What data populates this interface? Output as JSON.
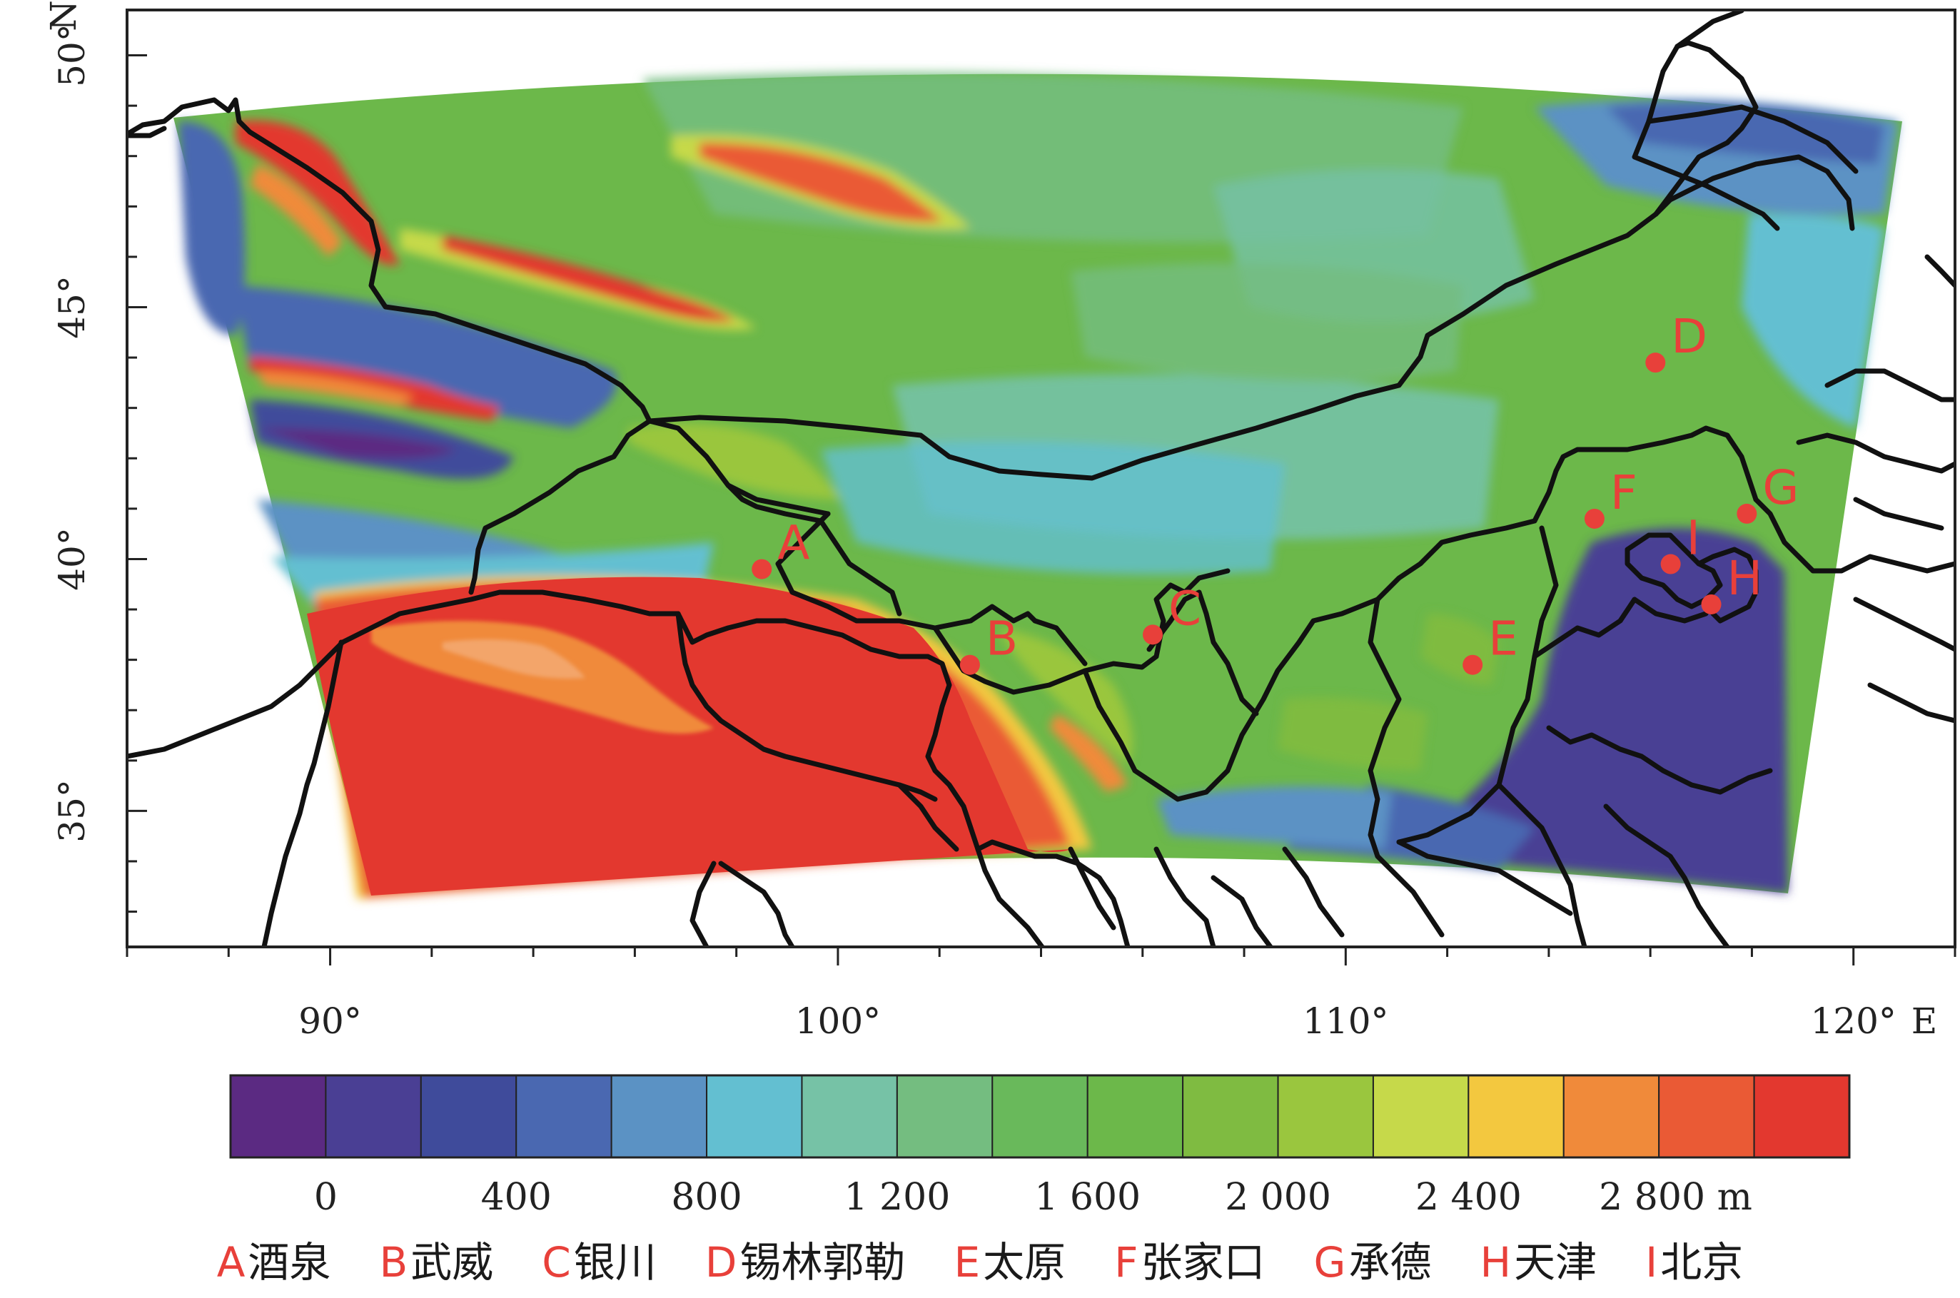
{
  "map": {
    "lat_ticks": [
      {
        "value": 35,
        "label": "35°"
      },
      {
        "value": 40,
        "label": "40°"
      },
      {
        "value": 45,
        "label": "45°"
      },
      {
        "value": 50,
        "label": "50°"
      }
    ],
    "lon_ticks": [
      {
        "value": 90,
        "label": "90°"
      },
      {
        "value": 100,
        "label": "100°"
      },
      {
        "value": 110,
        "label": "110°"
      },
      {
        "value": 120,
        "label": "120°"
      }
    ],
    "north_label": "N",
    "east_label": "E",
    "extent": {
      "lon": [
        86,
        122
      ],
      "lat": [
        32.3,
        50.9
      ]
    },
    "boundary_color": "#111111"
  },
  "colorbar": {
    "labels": [
      "0",
      "400",
      "800",
      "1 200",
      "1 600",
      "2 000",
      "2 400",
      "2 800 m"
    ],
    "colors": [
      "#5b2a82",
      "#4a3f94",
      "#3f4b9b",
      "#4a68b1",
      "#5b92c4",
      "#63bfd1",
      "#76c2a6",
      "#74bd80",
      "#69b95b",
      "#6cb84a",
      "#7fbb41",
      "#9ac63e",
      "#c6d94a",
      "#f3c83f",
      "#f08a3a",
      "#ea5a35",
      "#e3382f"
    ]
  },
  "stations": [
    {
      "letter": "A",
      "name": "酒泉",
      "lon": 98.5,
      "lat": 39.8
    },
    {
      "letter": "B",
      "name": "武威",
      "lon": 102.6,
      "lat": 37.9
    },
    {
      "letter": "C",
      "name": "银川",
      "lon": 106.2,
      "lat": 38.5
    },
    {
      "letter": "D",
      "name": "锡林郭勒",
      "lon": 116.1,
      "lat": 43.9
    },
    {
      "letter": "E",
      "name": "太原",
      "lon": 112.5,
      "lat": 37.9
    },
    {
      "letter": "F",
      "name": "张家口",
      "lon": 114.9,
      "lat": 40.8
    },
    {
      "letter": "G",
      "name": "承德",
      "lon": 117.9,
      "lat": 40.9
    },
    {
      "letter": "H",
      "name": "天津",
      "lon": 117.2,
      "lat": 39.1
    },
    {
      "letter": "I",
      "name": "北京",
      "lon": 116.4,
      "lat": 39.9
    }
  ],
  "legend": [
    {
      "letter": "A",
      "name": "酒泉"
    },
    {
      "letter": "B",
      "name": "武威"
    },
    {
      "letter": "C",
      "name": "银川"
    },
    {
      "letter": "D",
      "name": "锡林郭勒"
    },
    {
      "letter": "E",
      "name": "太原"
    },
    {
      "letter": "F",
      "name": "张家口"
    },
    {
      "letter": "G",
      "name": "承德"
    },
    {
      "letter": "H",
      "name": "天津"
    },
    {
      "letter": "I",
      "name": "北京"
    }
  ]
}
